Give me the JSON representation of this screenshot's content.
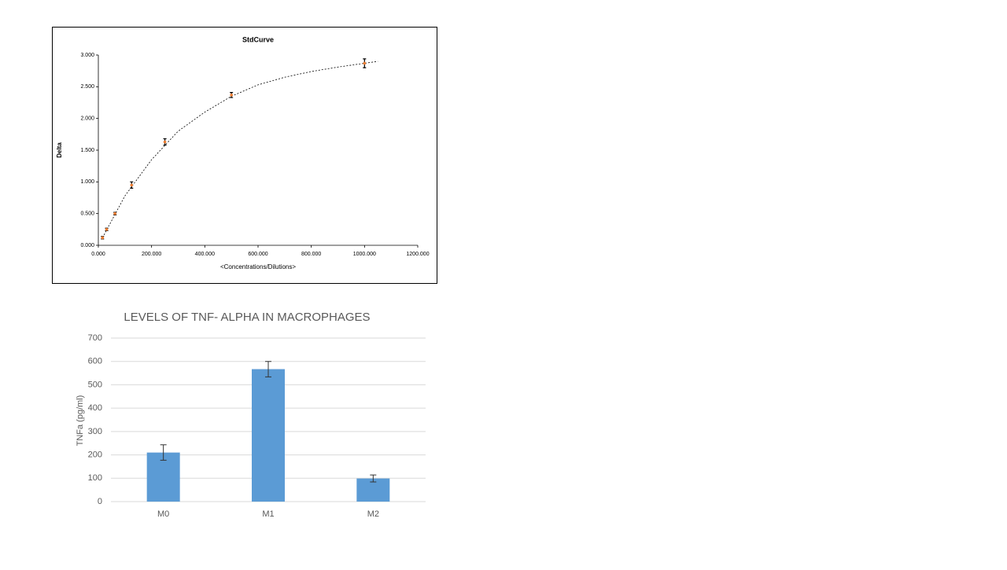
{
  "chart_data": [
    {
      "type": "scatter",
      "title": "StdCurve",
      "x_label": "<Concentrations/Dilutions>",
      "y_label": "Delta",
      "x": [
        15.6,
        31.25,
        62.5,
        125,
        250,
        500,
        1000
      ],
      "values": [
        0.12,
        0.25,
        0.5,
        0.95,
        1.63,
        2.37,
        2.87
      ],
      "errors": [
        0.02,
        0.02,
        0.02,
        0.05,
        0.05,
        0.04,
        0.07
      ],
      "color": "#ed7d31",
      "error_color": "#000000",
      "fit": {
        "x": [
          15.6,
          100,
          200,
          300,
          400,
          500,
          600,
          700,
          800,
          900,
          1000,
          1050
        ],
        "values": [
          0.12,
          0.78,
          1.35,
          1.8,
          2.1,
          2.35,
          2.53,
          2.65,
          2.74,
          2.81,
          2.87,
          2.9
        ],
        "color": "#000000"
      },
      "xlim": [
        0,
        1200
      ],
      "ylim": [
        0,
        3
      ],
      "xticks": [
        {
          "value": 0,
          "label": "0.000"
        },
        {
          "value": 200,
          "label": "200.000"
        },
        {
          "value": 400,
          "label": "400.000"
        },
        {
          "value": 600,
          "label": "600.000"
        },
        {
          "value": 800,
          "label": "800.000"
        },
        {
          "value": 1000,
          "label": "1000.000"
        },
        {
          "value": 1200,
          "label": "1200.000"
        }
      ],
      "yticks": [
        {
          "value": 0,
          "label": "0.000"
        },
        {
          "value": 0.5,
          "label": "0.500"
        },
        {
          "value": 1,
          "label": "1.000"
        },
        {
          "value": 1.5,
          "label": "1.500"
        },
        {
          "value": 2,
          "label": "2.000"
        },
        {
          "value": 2.5,
          "label": "2.500"
        },
        {
          "value": 3,
          "label": "3.000"
        }
      ],
      "grid": false
    },
    {
      "type": "bar",
      "title": "LEVELS OF TNF- ALPHA IN MACROPHAGES",
      "y_label": "TNFa (pg/ml)",
      "categories": [
        "M0",
        "M1",
        "M2"
      ],
      "values": [
        210,
        567,
        99
      ],
      "errors": [
        33,
        33,
        15
      ],
      "color": "#5b9bd5",
      "error_color": "#333333",
      "ylim": [
        0,
        700
      ],
      "yticks": [
        0,
        100,
        200,
        300,
        400,
        500,
        600,
        700
      ],
      "grid": true
    }
  ]
}
